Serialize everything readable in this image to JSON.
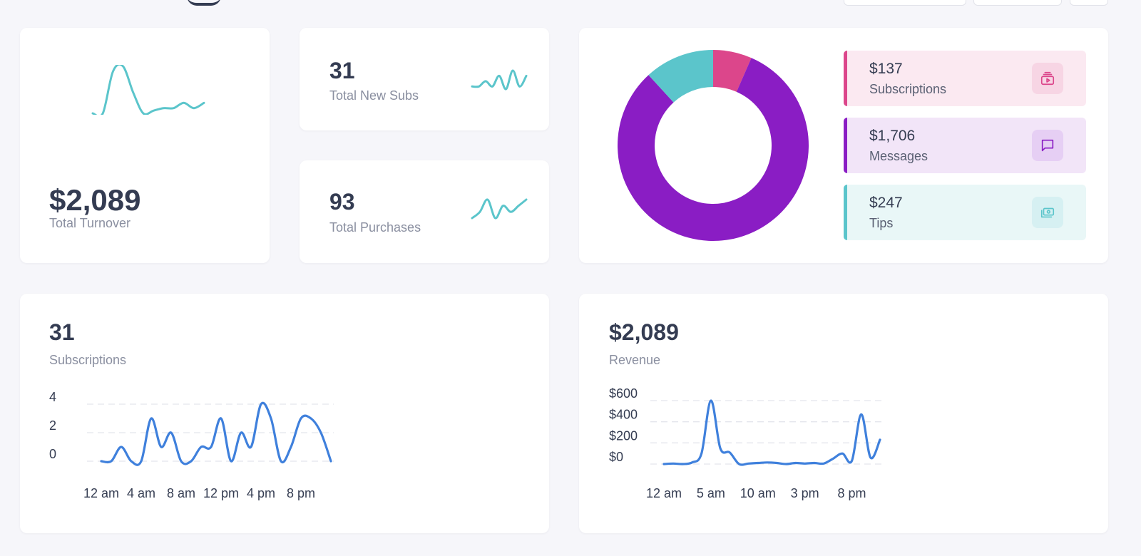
{
  "colors": {
    "teal": "#5bc5cb",
    "purple": "#8a1dc4",
    "pink": "#dc468b",
    "line_blue": "#3f80dc"
  },
  "turnover": {
    "value": "$2,089",
    "label": "Total Turnover"
  },
  "new_subs": {
    "value": "31",
    "label": "Total New Subs"
  },
  "purchases": {
    "value": "93",
    "label": "Total Purchases"
  },
  "breakdown": {
    "items": [
      {
        "value": "$137",
        "label": "Subscriptions",
        "icon": "video-icon",
        "color": "#dc468b"
      },
      {
        "value": "$1,706",
        "label": "Messages",
        "icon": "message-icon",
        "color": "#8a1dc4"
      },
      {
        "value": "$247",
        "label": "Tips",
        "icon": "cash-icon",
        "color": "#5bc5cb"
      }
    ]
  },
  "subscriptions_card": {
    "value": "31",
    "label": "Subscriptions"
  },
  "revenue_card": {
    "value": "$2,089",
    "label": "Revenue"
  },
  "chart_data": [
    {
      "type": "pie",
      "categories": [
        "Subscriptions",
        "Messages",
        "Tips"
      ],
      "values": [
        137,
        1706,
        247
      ],
      "colors": [
        "#dc468b",
        "#8a1dc4",
        "#5bc5cb"
      ]
    },
    {
      "type": "line",
      "x": [
        "12 am",
        "1 am",
        "2 am",
        "3 am",
        "4 am",
        "5 am",
        "6 am",
        "7 am",
        "8 am",
        "9 am",
        "10 am",
        "11 am",
        "12 pm",
        "1 pm",
        "2 pm",
        "3 pm",
        "4 pm",
        "5 pm",
        "6 pm",
        "7 pm",
        "8 pm",
        "9 pm",
        "10 pm",
        "11 pm"
      ],
      "xticks": [
        "12 am",
        "4 am",
        "8 am",
        "12 pm",
        "4 pm",
        "8 pm"
      ],
      "series": [
        {
          "values": [
            0,
            0,
            1,
            0,
            0,
            3,
            1,
            2,
            0,
            0,
            1,
            1,
            3,
            0,
            2,
            1,
            4,
            3,
            0,
            1,
            3,
            3,
            2,
            0
          ]
        }
      ],
      "ylim": [
        0,
        4
      ],
      "yticks": [
        "0",
        "2",
        "4"
      ],
      "grid": true
    },
    {
      "type": "line",
      "x": [
        "12 am",
        "1 am",
        "2 am",
        "3 am",
        "4 am",
        "5 am",
        "6 am",
        "7 am",
        "8 am",
        "9 am",
        "10 am",
        "11 am",
        "12 pm",
        "1 pm",
        "2 pm",
        "3 pm",
        "4 pm",
        "5 pm",
        "6 pm",
        "7 pm",
        "8 pm",
        "9 pm",
        "10 pm",
        "11 pm"
      ],
      "xticks": [
        "12 am",
        "5 am",
        "10 am",
        "3 pm",
        "8 pm"
      ],
      "series": [
        {
          "values": [
            0,
            5,
            0,
            15,
            100,
            600,
            150,
            110,
            0,
            5,
            10,
            15,
            10,
            0,
            10,
            5,
            10,
            5,
            50,
            100,
            30,
            470,
            60,
            230
          ]
        }
      ],
      "ylim": [
        0,
        600
      ],
      "yticks": [
        "$0",
        "$200",
        "$400",
        "$600"
      ],
      "grid": true
    }
  ],
  "sparklines": {
    "turnover": [
      0,
      0,
      8,
      9,
      4,
      0,
      0.5,
      1,
      1,
      2,
      1,
      2
    ],
    "new_subs": [
      1,
      1,
      2,
      1,
      3,
      0.5,
      4,
      1,
      3
    ],
    "purchases": [
      1,
      2,
      4,
      1,
      3,
      2,
      3,
      4
    ]
  }
}
